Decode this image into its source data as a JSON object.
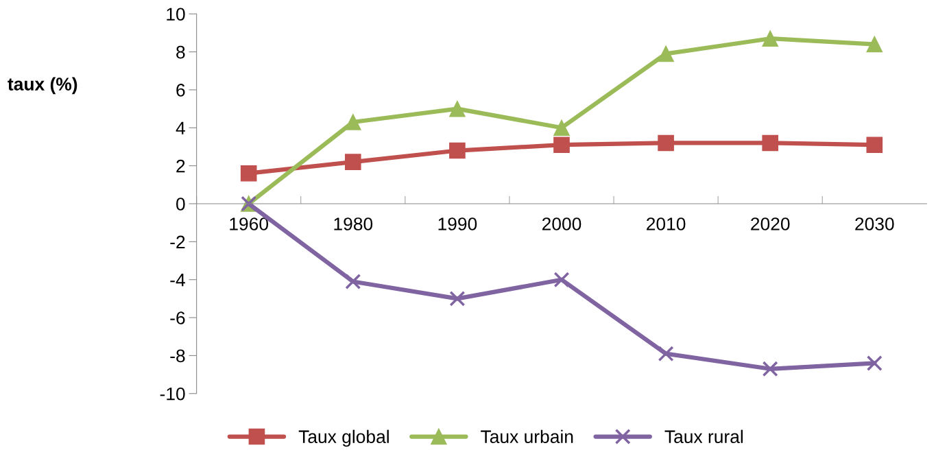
{
  "chart_data": {
    "type": "line",
    "ylabel": "taux (%)",
    "categories": [
      "1960",
      "1980",
      "1990",
      "2000",
      "2010",
      "2020",
      "2030"
    ],
    "series": [
      {
        "name": "Taux global",
        "color": "#c0504d",
        "marker": "square",
        "values": [
          1.6,
          2.2,
          2.8,
          3.1,
          3.2,
          3.2,
          3.1
        ]
      },
      {
        "name": "Taux urbain",
        "color": "#9bbb59",
        "marker": "triangle",
        "values": [
          0,
          4.3,
          5.0,
          4.0,
          7.9,
          8.7,
          8.4
        ]
      },
      {
        "name": "Taux rural",
        "color": "#8064a2",
        "marker": "cross",
        "values": [
          0,
          -4.1,
          -5.0,
          -4.0,
          -7.9,
          -8.7,
          -8.4
        ]
      }
    ],
    "ylim": [
      -10,
      10
    ],
    "yticks": [
      -10,
      -8,
      -6,
      -4,
      -2,
      0,
      2,
      4,
      6,
      8,
      10
    ],
    "grid": false,
    "legend": "bottom",
    "line_style": "solid"
  }
}
